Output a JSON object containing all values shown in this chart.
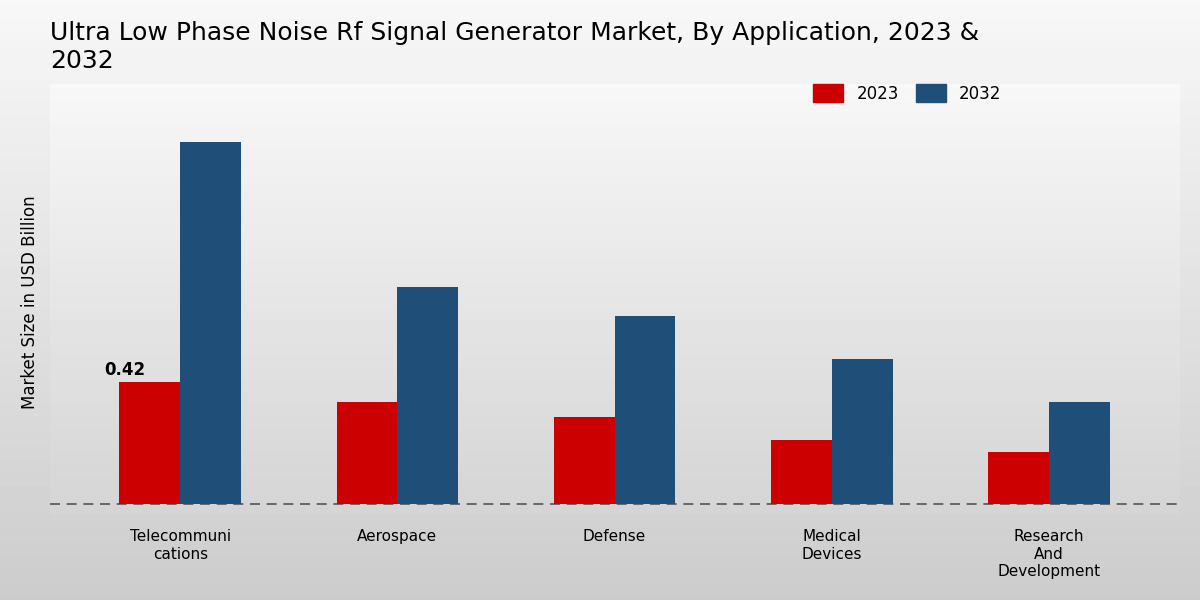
{
  "title": "Ultra Low Phase Noise Rf Signal Generator Market, By Application, 2023 &\n2032",
  "ylabel": "Market Size in USD Billion",
  "categories": [
    "Telecommuni\ncations",
    "Aerospace",
    "Defense",
    "Medical\nDevices",
    "Research\nAnd\nDevelopment"
  ],
  "values_2023": [
    0.42,
    0.35,
    0.3,
    0.22,
    0.18
  ],
  "values_2032": [
    1.25,
    0.75,
    0.65,
    0.5,
    0.35
  ],
  "color_2023": "#cc0000",
  "color_2032": "#1f4e79",
  "bar_label_value": "0.42",
  "bar_label_index": 0,
  "legend_2023": "2023",
  "legend_2032": "2032",
  "bg_light": "#f0f0f0",
  "bg_dark": "#d0d0d0",
  "title_fontsize": 18,
  "ylabel_fontsize": 12,
  "tick_fontsize": 11,
  "legend_fontsize": 12,
  "bar_width": 0.28,
  "ylim_min": -0.06,
  "ylim_max": 1.45
}
